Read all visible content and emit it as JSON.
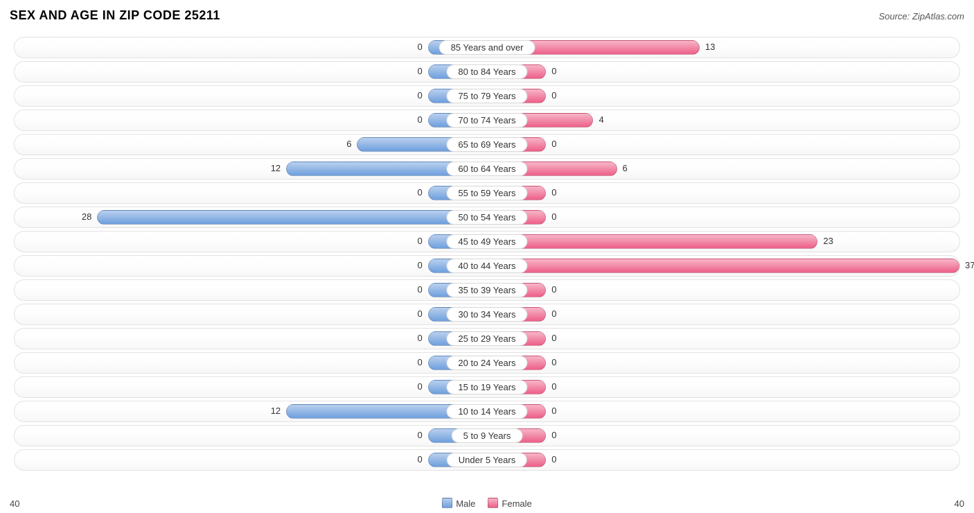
{
  "title": "SEX AND AGE IN ZIP CODE 25211",
  "source": "Source: ZipAtlas.com",
  "chart": {
    "type": "population-pyramid",
    "axis_max": 40,
    "min_bar_units": 5,
    "row_border_color": "#e2e2e2",
    "background_color": "#ffffff",
    "label_fontsize": 13,
    "title_fontsize": 18,
    "title_color": "#333333",
    "male": {
      "label": "Male",
      "fill_light": "#b9d0ee",
      "fill_dark": "#6f9fdd",
      "swatch": "#6f9fdd"
    },
    "female": {
      "label": "Female",
      "fill_light": "#f7b6c8",
      "fill_dark": "#ed5f88",
      "swatch": "#ed5f88"
    },
    "categories": [
      {
        "label": "85 Years and over",
        "male": 0,
        "female": 13
      },
      {
        "label": "80 to 84 Years",
        "male": 0,
        "female": 0
      },
      {
        "label": "75 to 79 Years",
        "male": 0,
        "female": 0
      },
      {
        "label": "70 to 74 Years",
        "male": 0,
        "female": 4
      },
      {
        "label": "65 to 69 Years",
        "male": 6,
        "female": 0
      },
      {
        "label": "60 to 64 Years",
        "male": 12,
        "female": 6
      },
      {
        "label": "55 to 59 Years",
        "male": 0,
        "female": 0
      },
      {
        "label": "50 to 54 Years",
        "male": 28,
        "female": 0
      },
      {
        "label": "45 to 49 Years",
        "male": 0,
        "female": 23
      },
      {
        "label": "40 to 44 Years",
        "male": 0,
        "female": 37
      },
      {
        "label": "35 to 39 Years",
        "male": 0,
        "female": 0
      },
      {
        "label": "30 to 34 Years",
        "male": 0,
        "female": 0
      },
      {
        "label": "25 to 29 Years",
        "male": 0,
        "female": 0
      },
      {
        "label": "20 to 24 Years",
        "male": 0,
        "female": 0
      },
      {
        "label": "15 to 19 Years",
        "male": 0,
        "female": 0
      },
      {
        "label": "10 to 14 Years",
        "male": 12,
        "female": 0
      },
      {
        "label": "5 to 9 Years",
        "male": 0,
        "female": 0
      },
      {
        "label": "Under 5 Years",
        "male": 0,
        "female": 0
      }
    ],
    "axis_left_label": "40",
    "axis_right_label": "40"
  }
}
